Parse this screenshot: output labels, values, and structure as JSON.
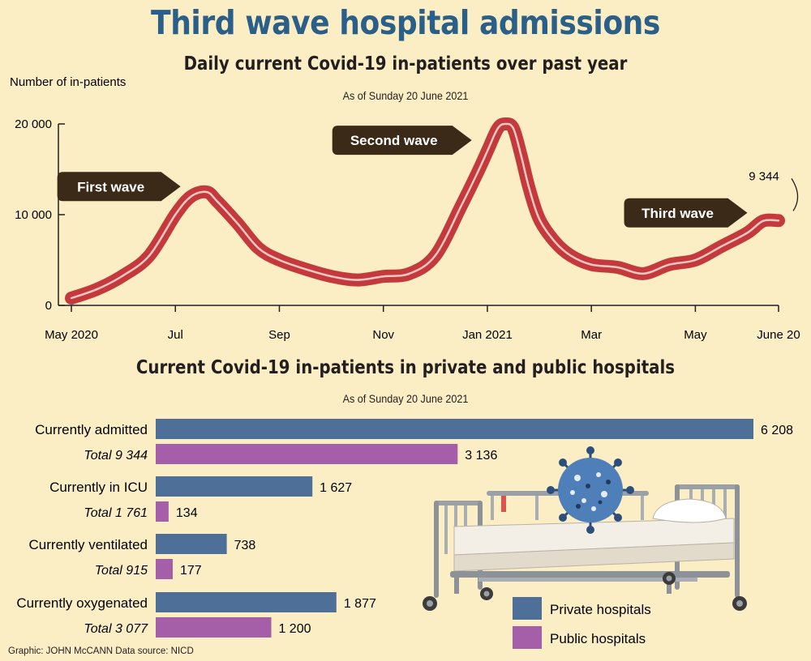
{
  "title": "Third wave hospital admissions",
  "footer": "Graphic: JOHN McCANN  Data source: NICD",
  "colors": {
    "title": "#2a5f8a",
    "background": "#fbeec4",
    "line_outer": "#c4393b",
    "line_inner": "#f6c7c3",
    "callout": "#3a2a17",
    "private": "#4e6f98",
    "public": "#a45fa8"
  },
  "chart_data": [
    {
      "type": "line",
      "title": "Daily current Covid-19 in-patients over past year",
      "subtitle": "As of Sunday 20 June 2021",
      "ylabel": "Number of in-patients",
      "ylim": [
        0,
        20000
      ],
      "yticks": [
        0,
        10000,
        20000
      ],
      "ytick_labels": [
        "0",
        "10 000",
        "20 000"
      ],
      "xlim": [
        0,
        13.6
      ],
      "xticks": [
        {
          "pos": 0,
          "label": "May 2020"
        },
        {
          "pos": 2,
          "label": "Jul"
        },
        {
          "pos": 4,
          "label": "Sep"
        },
        {
          "pos": 6,
          "label": "Nov"
        },
        {
          "pos": 8,
          "label": "Jan 2021"
        },
        {
          "pos": 10,
          "label": "Mar"
        },
        {
          "pos": 12,
          "label": "May"
        },
        {
          "pos": 13.6,
          "label": "June 20"
        }
      ],
      "series": [
        {
          "name": "Current in-patients",
          "x": [
            0,
            0.5,
            1.0,
            1.5,
            2.0,
            2.3,
            2.6,
            2.8,
            3.2,
            3.6,
            4.0,
            4.5,
            5.0,
            5.5,
            6.0,
            6.5,
            7.0,
            7.5,
            7.8,
            8.0,
            8.2,
            8.35,
            8.5,
            8.65,
            8.8,
            9.0,
            9.3,
            9.6,
            10.0,
            10.5,
            11.0,
            11.5,
            12.0,
            12.5,
            13.0,
            13.3,
            13.6
          ],
          "y": [
            800,
            1800,
            3300,
            5500,
            10000,
            12000,
            12500,
            11500,
            9000,
            6300,
            5000,
            4000,
            3200,
            2800,
            3200,
            3500,
            5500,
            11000,
            14500,
            17000,
            19500,
            20000,
            19500,
            16500,
            13000,
            9500,
            7000,
            5500,
            4500,
            4200,
            3500,
            4500,
            5000,
            6500,
            8000,
            9300,
            9344
          ]
        }
      ],
      "annotations": [
        {
          "label": "First wave",
          "x": 2.1,
          "y": 13100
        },
        {
          "label": "Second wave",
          "x": 7.7,
          "y": 18200
        },
        {
          "label": "Third wave",
          "x": 13.0,
          "y": 10200
        }
      ],
      "end_label": "9 344"
    },
    {
      "type": "bar",
      "orientation": "horizontal",
      "title": "Current Covid-19 in-patients in private and public hospitals",
      "subtitle": "As of Sunday 20 June 2021",
      "categories": [
        "Currently admitted",
        "Currently in ICU",
        "Currently ventilated",
        "Currently oxygenated"
      ],
      "totals": [
        "Total 9 344",
        "Total 1 761",
        "Total 915",
        "Total 3 077"
      ],
      "series": [
        {
          "name": "Private hospitals",
          "values": [
            6208,
            1627,
            738,
            1877
          ],
          "value_labels": [
            "6 208",
            "1 627",
            "738",
            "1 877"
          ]
        },
        {
          "name": "Public hospitals",
          "values": [
            3136,
            134,
            177,
            1200
          ],
          "value_labels": [
            "3 136",
            "134",
            "177",
            "1 200"
          ]
        }
      ],
      "xlim": [
        0,
        6208
      ]
    }
  ]
}
